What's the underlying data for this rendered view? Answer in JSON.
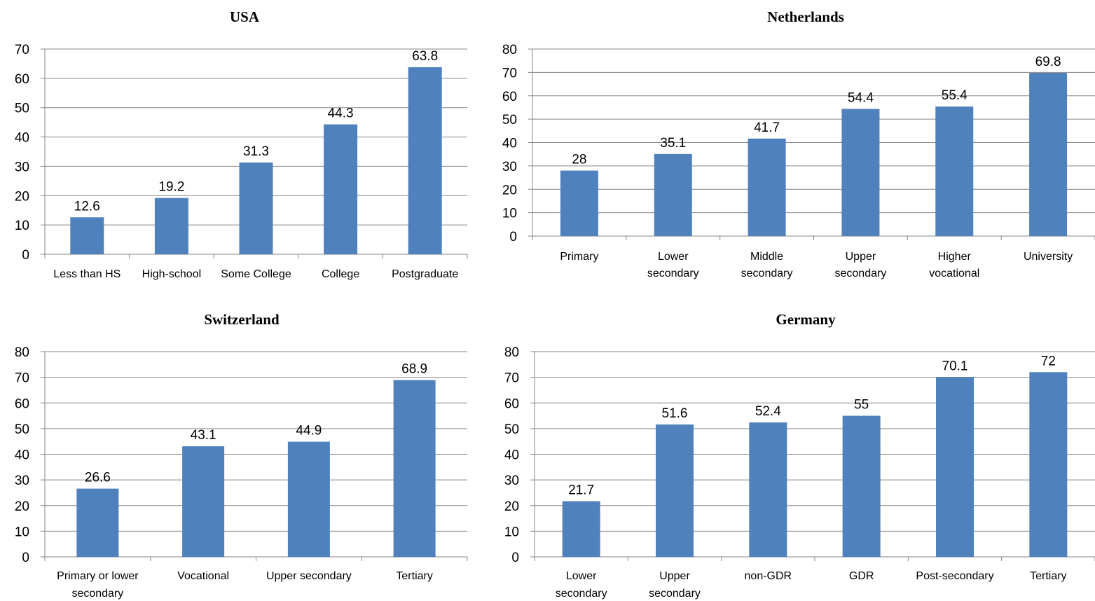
{
  "bar_color": "#4f81bd",
  "chart_data": [
    {
      "type": "bar",
      "title": "USA",
      "categories": [
        [
          "Less than HS"
        ],
        [
          "High-school"
        ],
        [
          "Some College"
        ],
        [
          "College"
        ],
        [
          "Postgraduate"
        ]
      ],
      "values": [
        12.6,
        19.2,
        31.3,
        44.3,
        63.8
      ],
      "value_labels": [
        "12.6",
        "19.2",
        "31.3",
        "44.3",
        "63.8"
      ],
      "ylim": [
        0,
        70
      ],
      "yticks": [
        0,
        10,
        20,
        30,
        40,
        50,
        60,
        70
      ],
      "grid": true
    },
    {
      "type": "bar",
      "title": "Netherlands",
      "categories": [
        [
          "Primary"
        ],
        [
          "Lower",
          "secondary"
        ],
        [
          "Middle",
          "secondary"
        ],
        [
          "Upper",
          "secondary"
        ],
        [
          "Higher",
          "vocational"
        ],
        [
          "University"
        ]
      ],
      "values": [
        28,
        35.1,
        41.7,
        54.4,
        55.4,
        69.8
      ],
      "value_labels": [
        "28",
        "35.1",
        "41.7",
        "54.4",
        "55.4",
        "69.8"
      ],
      "ylim": [
        0,
        80
      ],
      "yticks": [
        0,
        10,
        20,
        30,
        40,
        50,
        60,
        70,
        80
      ],
      "grid": true
    },
    {
      "type": "bar",
      "title": "Switzerland",
      "categories": [
        [
          "Primary or lower",
          "secondary"
        ],
        [
          "Vocational"
        ],
        [
          "Upper secondary"
        ],
        [
          "Tertiary"
        ]
      ],
      "values": [
        26.6,
        43.1,
        44.9,
        68.9
      ],
      "value_labels": [
        "26.6",
        "43.1",
        "44.9",
        "68.9"
      ],
      "ylim": [
        0,
        80
      ],
      "yticks": [
        0,
        10,
        20,
        30,
        40,
        50,
        60,
        70,
        80
      ],
      "grid": true
    },
    {
      "type": "bar",
      "title": "Germany",
      "categories": [
        [
          "Lower",
          "secondary"
        ],
        [
          "Upper",
          "secondary"
        ],
        [
          "non-GDR"
        ],
        [
          "GDR"
        ],
        [
          "Post-secondary"
        ],
        [
          "Tertiary"
        ]
      ],
      "values": [
        21.7,
        51.6,
        52.4,
        55,
        70.1,
        72
      ],
      "value_labels": [
        "21.7",
        "51.6",
        "52.4",
        "55",
        "70.1",
        "72"
      ],
      "ylim": [
        0,
        80
      ],
      "yticks": [
        0,
        10,
        20,
        30,
        40,
        50,
        60,
        70,
        80
      ],
      "grid": true
    }
  ]
}
